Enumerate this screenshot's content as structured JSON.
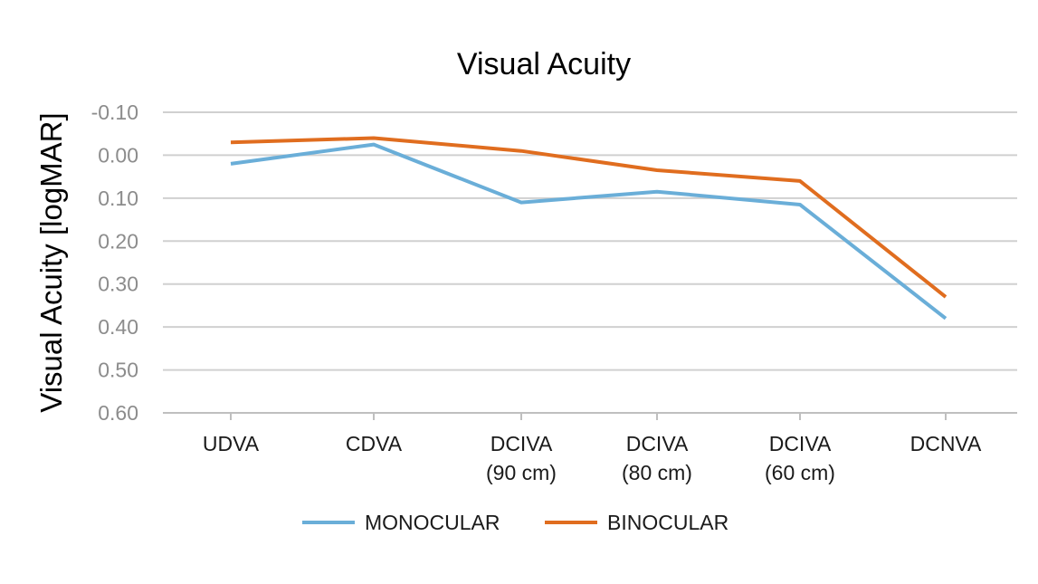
{
  "chart_data": {
    "type": "line",
    "title": "Visual Acuity",
    "xlabel": "",
    "ylabel": "Visual Acuity [logMAR]",
    "categories": [
      [
        "UDVA"
      ],
      [
        "CDVA"
      ],
      [
        "DCIVA",
        "(90 cm)"
      ],
      [
        "DCIVA",
        "(80 cm)"
      ],
      [
        "DCIVA",
        "(60 cm)"
      ],
      [
        "DCNVA"
      ]
    ],
    "y_ticks": [
      "-0.10",
      "0.00",
      "0.10",
      "0.20",
      "0.30",
      "0.40",
      "0.50",
      "0.60"
    ],
    "ylim": [
      -0.1,
      0.6
    ],
    "y_inverted": true,
    "grid": true,
    "legend_position": "bottom",
    "series": [
      {
        "name": "MONOCULAR",
        "color": "#6aaed8",
        "values": [
          0.02,
          -0.025,
          0.11,
          0.085,
          0.115,
          0.38
        ]
      },
      {
        "name": "BINOCULAR",
        "color": "#e06d1f",
        "values": [
          -0.03,
          -0.04,
          -0.01,
          0.035,
          0.06,
          0.33
        ]
      }
    ]
  }
}
